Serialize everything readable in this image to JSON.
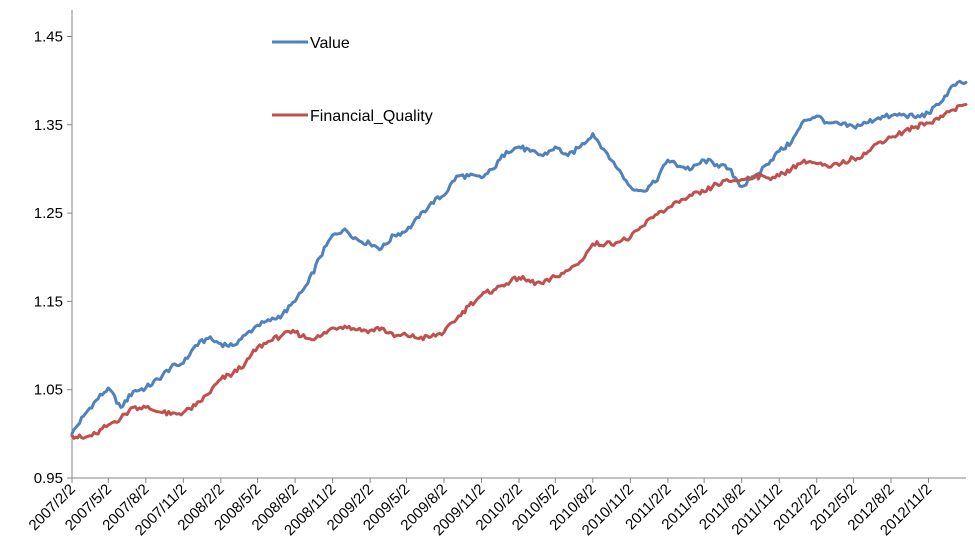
{
  "chart_data": {
    "type": "line",
    "title": "",
    "xlabel": "",
    "ylabel": "",
    "ylim": [
      0.95,
      1.48
    ],
    "yticks": [
      "0.95",
      "1.05",
      "1.15",
      "1.25",
      "1.35",
      "1.45"
    ],
    "ytick_values": [
      0.95,
      1.05,
      1.15,
      1.25,
      1.35,
      1.45
    ],
    "x_tick_labels": [
      "2007/2/2",
      "2007/5/2",
      "2007/8/2",
      "2007/11/2",
      "2008/2/2",
      "2008/5/2",
      "2008/8/2",
      "2008/11/2",
      "2009/2/2",
      "2009/5/2",
      "2009/8/2",
      "2009/11/2",
      "2010/2/2",
      "2010/5/2",
      "2010/8/2",
      "2010/11/2",
      "2011/2/2",
      "2011/5/2",
      "2011/8/2",
      "2011/11/2",
      "2012/2/2",
      "2012/5/2",
      "2012/8/2",
      "2012/11/2"
    ],
    "x": [
      "2007/2/2",
      "2007/3/2",
      "2007/4/2",
      "2007/5/2",
      "2007/6/2",
      "2007/7/2",
      "2007/8/2",
      "2007/9/2",
      "2007/10/2",
      "2007/11/2",
      "2007/12/2",
      "2008/1/2",
      "2008/2/2",
      "2008/3/2",
      "2008/4/2",
      "2008/5/2",
      "2008/6/2",
      "2008/7/2",
      "2008/8/2",
      "2008/9/2",
      "2008/10/2",
      "2008/11/2",
      "2008/12/2",
      "2009/1/2",
      "2009/2/2",
      "2009/3/2",
      "2009/4/2",
      "2009/5/2",
      "2009/6/2",
      "2009/7/2",
      "2009/8/2",
      "2009/9/2",
      "2009/10/2",
      "2009/11/2",
      "2009/12/2",
      "2010/1/2",
      "2010/2/2",
      "2010/3/2",
      "2010/4/2",
      "2010/5/2",
      "2010/6/2",
      "2010/7/2",
      "2010/8/2",
      "2010/9/2",
      "2010/10/2",
      "2010/11/2",
      "2010/12/2",
      "2011/1/2",
      "2011/2/2",
      "2011/3/2",
      "2011/4/2",
      "2011/5/2",
      "2011/6/2",
      "2011/7/2",
      "2011/8/2",
      "2011/9/2",
      "2011/10/2",
      "2011/11/2",
      "2011/12/2",
      "2012/1/2",
      "2012/2/2",
      "2012/3/2",
      "2012/4/2",
      "2012/5/2",
      "2012/6/2",
      "2012/7/2",
      "2012/8/2",
      "2012/9/2",
      "2012/10/2",
      "2012/11/2",
      "2012/12/2",
      "2013/1/2",
      "2013/2/2"
    ],
    "series": [
      {
        "name": "Value",
        "color": "#4F81BD",
        "values": [
          1.0,
          1.02,
          1.038,
          1.052,
          1.03,
          1.048,
          1.052,
          1.062,
          1.075,
          1.08,
          1.1,
          1.108,
          1.102,
          1.1,
          1.112,
          1.123,
          1.128,
          1.135,
          1.15,
          1.17,
          1.2,
          1.225,
          1.232,
          1.22,
          1.215,
          1.21,
          1.225,
          1.23,
          1.245,
          1.262,
          1.27,
          1.292,
          1.292,
          1.29,
          1.3,
          1.32,
          1.325,
          1.32,
          1.315,
          1.325,
          1.315,
          1.325,
          1.34,
          1.32,
          1.3,
          1.28,
          1.275,
          1.285,
          1.31,
          1.303,
          1.3,
          1.31,
          1.305,
          1.3,
          1.28,
          1.29,
          1.305,
          1.32,
          1.33,
          1.355,
          1.36,
          1.352,
          1.35,
          1.348,
          1.352,
          1.358,
          1.36,
          1.362,
          1.358,
          1.363,
          1.375,
          1.395,
          1.398
        ]
      },
      {
        "name": "Financial_Quality",
        "color": "#C0504D",
        "values": [
          0.998,
          0.995,
          1.0,
          1.01,
          1.018,
          1.03,
          1.03,
          1.025,
          1.022,
          1.024,
          1.032,
          1.045,
          1.062,
          1.068,
          1.08,
          1.098,
          1.105,
          1.112,
          1.115,
          1.108,
          1.11,
          1.12,
          1.122,
          1.118,
          1.117,
          1.12,
          1.11,
          1.112,
          1.108,
          1.11,
          1.115,
          1.13,
          1.145,
          1.157,
          1.163,
          1.17,
          1.177,
          1.172,
          1.17,
          1.178,
          1.185,
          1.195,
          1.215,
          1.215,
          1.217,
          1.222,
          1.235,
          1.248,
          1.256,
          1.262,
          1.27,
          1.274,
          1.283,
          1.286,
          1.288,
          1.292,
          1.29,
          1.292,
          1.3,
          1.31,
          1.306,
          1.302,
          1.306,
          1.312,
          1.317,
          1.33,
          1.336,
          1.342,
          1.348,
          1.352,
          1.36,
          1.367,
          1.373
        ]
      }
    ],
    "legend_placement": "top-center",
    "grid": false
  }
}
